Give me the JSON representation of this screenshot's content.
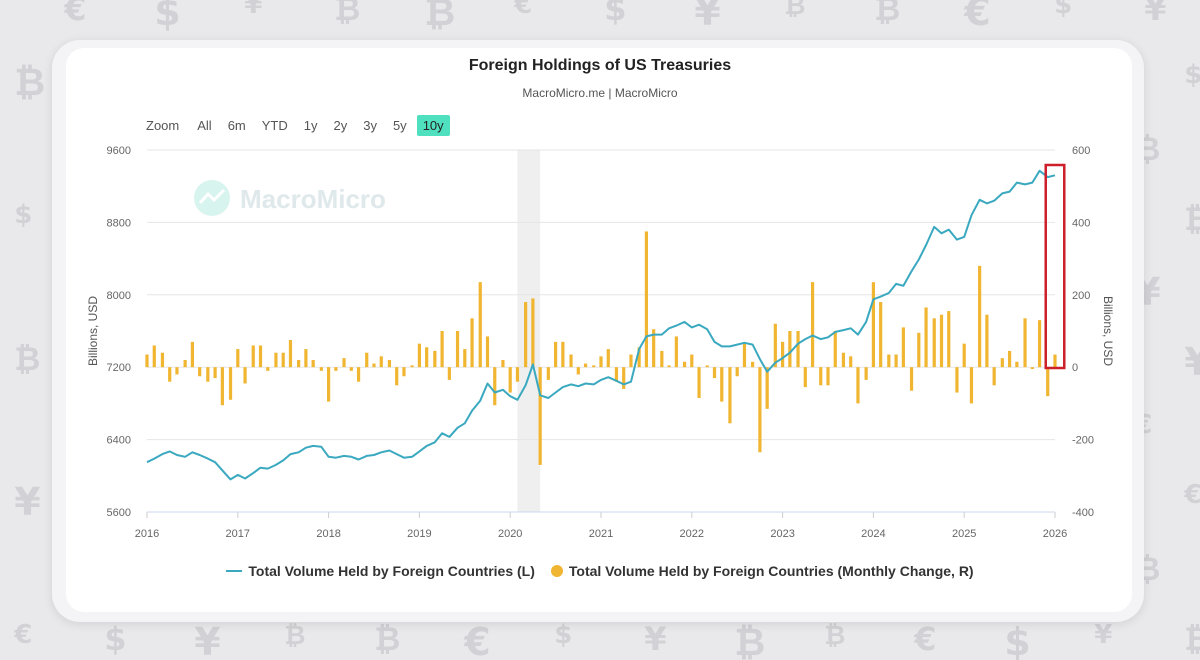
{
  "page": {
    "title": "Foreign Holdings of US Treasuries",
    "subtitle": "MacroMicro.me | MacroMicro",
    "watermark": "MacroMicro"
  },
  "zoom": {
    "label": "Zoom",
    "options": [
      "All",
      "6m",
      "YTD",
      "1y",
      "2y",
      "3y",
      "5y",
      "10y"
    ],
    "selected": "10y"
  },
  "colors": {
    "line": "#3aa9c0",
    "bar": "#f0b531",
    "highlight_box": "#cc1f2a",
    "shade": "#efefef",
    "active_zoom": "#4fe0bf"
  },
  "chart_data": {
    "type": "line+bar",
    "title": "Foreign Holdings of US Treasuries",
    "subtitle": "MacroMicro.me | MacroMicro",
    "x_ticks": [
      "2016",
      "2017",
      "2018",
      "2019",
      "2020",
      "2021",
      "2022",
      "2023",
      "2024",
      "2025",
      "2026"
    ],
    "x_range": [
      2016,
      2026
    ],
    "left_axis": {
      "label": "Billions, USD",
      "range": [
        5600,
        9600
      ],
      "ticks": [
        "5600",
        "6400",
        "7200",
        "8000",
        "8800",
        "9600"
      ]
    },
    "right_axis": {
      "label": "Billions, USD",
      "range": [
        -400,
        600
      ],
      "ticks": [
        "-400",
        "-200",
        "0",
        "200",
        "400",
        "600"
      ]
    },
    "shaded_period": [
      2020.08,
      2020.33
    ],
    "highlight_period": [
      2025.92,
      2026.08
    ],
    "series": [
      {
        "name": "Total Volume Held by Foreign Countries (L)",
        "type": "line",
        "axis": "left",
        "points": [
          [
            2016.0,
            6150
          ],
          [
            2016.08,
            6190
          ],
          [
            2016.17,
            6240
          ],
          [
            2016.25,
            6270
          ],
          [
            2016.33,
            6230
          ],
          [
            2016.42,
            6210
          ],
          [
            2016.5,
            6260
          ],
          [
            2016.58,
            6230
          ],
          [
            2016.67,
            6190
          ],
          [
            2016.75,
            6150
          ],
          [
            2016.83,
            6060
          ],
          [
            2016.92,
            5960
          ],
          [
            2017.0,
            6010
          ],
          [
            2017.08,
            5970
          ],
          [
            2017.17,
            6030
          ],
          [
            2017.25,
            6090
          ],
          [
            2017.33,
            6080
          ],
          [
            2017.42,
            6120
          ],
          [
            2017.5,
            6170
          ],
          [
            2017.58,
            6240
          ],
          [
            2017.67,
            6260
          ],
          [
            2017.75,
            6310
          ],
          [
            2017.83,
            6330
          ],
          [
            2017.92,
            6320
          ],
          [
            2018.0,
            6210
          ],
          [
            2018.08,
            6200
          ],
          [
            2018.17,
            6220
          ],
          [
            2018.25,
            6210
          ],
          [
            2018.33,
            6180
          ],
          [
            2018.42,
            6220
          ],
          [
            2018.5,
            6230
          ],
          [
            2018.58,
            6260
          ],
          [
            2018.67,
            6280
          ],
          [
            2018.75,
            6240
          ],
          [
            2018.83,
            6200
          ],
          [
            2018.92,
            6210
          ],
          [
            2019.0,
            6270
          ],
          [
            2019.08,
            6330
          ],
          [
            2019.17,
            6370
          ],
          [
            2019.25,
            6470
          ],
          [
            2019.33,
            6430
          ],
          [
            2019.42,
            6530
          ],
          [
            2019.5,
            6580
          ],
          [
            2019.58,
            6720
          ],
          [
            2019.67,
            6830
          ],
          [
            2019.75,
            7020
          ],
          [
            2019.83,
            6920
          ],
          [
            2019.92,
            6950
          ],
          [
            2020.0,
            6880
          ],
          [
            2020.08,
            6840
          ],
          [
            2020.17,
            7000
          ],
          [
            2020.25,
            7230
          ],
          [
            2020.33,
            6890
          ],
          [
            2020.42,
            6860
          ],
          [
            2020.5,
            6920
          ],
          [
            2020.58,
            6980
          ],
          [
            2020.67,
            7010
          ],
          [
            2020.75,
            6990
          ],
          [
            2020.83,
            7020
          ],
          [
            2020.92,
            7010
          ],
          [
            2021.0,
            7060
          ],
          [
            2021.08,
            7090
          ],
          [
            2021.17,
            7050
          ],
          [
            2021.25,
            7010
          ],
          [
            2021.33,
            7040
          ],
          [
            2021.42,
            7400
          ],
          [
            2021.5,
            7540
          ],
          [
            2021.58,
            7560
          ],
          [
            2021.67,
            7560
          ],
          [
            2021.75,
            7630
          ],
          [
            2021.83,
            7660
          ],
          [
            2021.92,
            7700
          ],
          [
            2022.0,
            7640
          ],
          [
            2022.08,
            7670
          ],
          [
            2022.17,
            7620
          ],
          [
            2022.25,
            7480
          ],
          [
            2022.33,
            7430
          ],
          [
            2022.42,
            7430
          ],
          [
            2022.5,
            7450
          ],
          [
            2022.58,
            7470
          ],
          [
            2022.67,
            7450
          ],
          [
            2022.75,
            7290
          ],
          [
            2022.83,
            7150
          ],
          [
            2022.92,
            7250
          ],
          [
            2023.0,
            7300
          ],
          [
            2023.08,
            7360
          ],
          [
            2023.17,
            7460
          ],
          [
            2023.25,
            7510
          ],
          [
            2023.33,
            7550
          ],
          [
            2023.42,
            7510
          ],
          [
            2023.5,
            7530
          ],
          [
            2023.58,
            7590
          ],
          [
            2023.67,
            7610
          ],
          [
            2023.75,
            7630
          ],
          [
            2023.83,
            7560
          ],
          [
            2023.92,
            7700
          ],
          [
            2024.0,
            7950
          ],
          [
            2024.08,
            7980
          ],
          [
            2024.17,
            8020
          ],
          [
            2024.25,
            8120
          ],
          [
            2024.33,
            8100
          ],
          [
            2024.42,
            8260
          ],
          [
            2024.5,
            8390
          ],
          [
            2024.58,
            8550
          ],
          [
            2024.67,
            8750
          ],
          [
            2024.75,
            8680
          ],
          [
            2024.83,
            8720
          ],
          [
            2024.92,
            8610
          ],
          [
            2025.0,
            8640
          ],
          [
            2025.08,
            8880
          ],
          [
            2025.17,
            9050
          ],
          [
            2025.25,
            9010
          ],
          [
            2025.33,
            9040
          ],
          [
            2025.42,
            9120
          ],
          [
            2025.5,
            9140
          ],
          [
            2025.58,
            9240
          ],
          [
            2025.67,
            9220
          ],
          [
            2025.75,
            9240
          ],
          [
            2025.83,
            9370
          ],
          [
            2025.92,
            9300
          ],
          [
            2026.0,
            9320
          ]
        ]
      },
      {
        "name": "Total Volume Held by Foreign Countries (Monthly Change, R)",
        "type": "bar",
        "axis": "right",
        "points": [
          [
            2016.0,
            35
          ],
          [
            2016.08,
            60
          ],
          [
            2016.17,
            40
          ],
          [
            2016.25,
            -40
          ],
          [
            2016.33,
            -20
          ],
          [
            2016.42,
            20
          ],
          [
            2016.5,
            70
          ],
          [
            2016.58,
            -25
          ],
          [
            2016.67,
            -40
          ],
          [
            2016.75,
            -30
          ],
          [
            2016.83,
            -105
          ],
          [
            2016.92,
            -90
          ],
          [
            2017.0,
            50
          ],
          [
            2017.08,
            -45
          ],
          [
            2017.17,
            60
          ],
          [
            2017.25,
            60
          ],
          [
            2017.33,
            -10
          ],
          [
            2017.42,
            40
          ],
          [
            2017.5,
            40
          ],
          [
            2017.58,
            75
          ],
          [
            2017.67,
            20
          ],
          [
            2017.75,
            50
          ],
          [
            2017.83,
            20
          ],
          [
            2017.92,
            -10
          ],
          [
            2018.0,
            -95
          ],
          [
            2018.08,
            -10
          ],
          [
            2018.17,
            25
          ],
          [
            2018.25,
            -10
          ],
          [
            2018.33,
            -40
          ],
          [
            2018.42,
            40
          ],
          [
            2018.5,
            10
          ],
          [
            2018.58,
            30
          ],
          [
            2018.67,
            20
          ],
          [
            2018.75,
            -50
          ],
          [
            2018.83,
            -25
          ],
          [
            2018.92,
            5
          ],
          [
            2019.0,
            65
          ],
          [
            2019.08,
            55
          ],
          [
            2019.17,
            45
          ],
          [
            2019.25,
            100
          ],
          [
            2019.33,
            -35
          ],
          [
            2019.42,
            100
          ],
          [
            2019.5,
            50
          ],
          [
            2019.58,
            135
          ],
          [
            2019.67,
            235
          ],
          [
            2019.75,
            85
          ],
          [
            2019.83,
            -105
          ],
          [
            2019.92,
            20
          ],
          [
            2020.0,
            -70
          ],
          [
            2020.08,
            -40
          ],
          [
            2020.17,
            180
          ],
          [
            2020.25,
            190
          ],
          [
            2020.33,
            -270
          ],
          [
            2020.42,
            -35
          ],
          [
            2020.5,
            70
          ],
          [
            2020.58,
            70
          ],
          [
            2020.67,
            35
          ],
          [
            2020.75,
            -20
          ],
          [
            2020.83,
            10
          ],
          [
            2020.92,
            5
          ],
          [
            2021.0,
            30
          ],
          [
            2021.08,
            50
          ],
          [
            2021.17,
            -40
          ],
          [
            2021.25,
            -60
          ],
          [
            2021.33,
            35
          ],
          [
            2021.42,
            55
          ],
          [
            2021.5,
            375
          ],
          [
            2021.58,
            105
          ],
          [
            2021.67,
            45
          ],
          [
            2021.75,
            5
          ],
          [
            2021.83,
            85
          ],
          [
            2021.92,
            15
          ],
          [
            2022.0,
            35
          ],
          [
            2022.08,
            -85
          ],
          [
            2022.17,
            5
          ],
          [
            2022.25,
            -30
          ],
          [
            2022.33,
            -95
          ],
          [
            2022.42,
            -155
          ],
          [
            2022.5,
            -25
          ],
          [
            2022.58,
            65
          ],
          [
            2022.67,
            15
          ],
          [
            2022.75,
            -235
          ],
          [
            2022.83,
            -115
          ],
          [
            2022.92,
            120
          ],
          [
            2023.0,
            70
          ],
          [
            2023.08,
            100
          ],
          [
            2023.17,
            100
          ],
          [
            2023.25,
            -55
          ],
          [
            2023.33,
            235
          ],
          [
            2023.42,
            -50
          ],
          [
            2023.5,
            -50
          ],
          [
            2023.58,
            100
          ],
          [
            2023.67,
            40
          ],
          [
            2023.75,
            30
          ],
          [
            2023.83,
            -100
          ],
          [
            2023.92,
            -35
          ],
          [
            2024.0,
            235
          ],
          [
            2024.08,
            180
          ],
          [
            2024.17,
            35
          ],
          [
            2024.25,
            35
          ],
          [
            2024.33,
            110
          ],
          [
            2024.42,
            -65
          ],
          [
            2024.5,
            95
          ],
          [
            2024.58,
            165
          ],
          [
            2024.67,
            135
          ],
          [
            2024.75,
            145
          ],
          [
            2024.83,
            155
          ],
          [
            2024.92,
            -70
          ],
          [
            2025.0,
            65
          ],
          [
            2025.08,
            -100
          ],
          [
            2025.17,
            280
          ],
          [
            2025.25,
            145
          ],
          [
            2025.33,
            -50
          ],
          [
            2025.42,
            25
          ],
          [
            2025.5,
            45
          ],
          [
            2025.58,
            15
          ],
          [
            2025.67,
            135
          ],
          [
            2025.75,
            -5
          ],
          [
            2025.83,
            130
          ],
          [
            2025.92,
            -80
          ],
          [
            2026.0,
            35
          ]
        ]
      }
    ]
  }
}
